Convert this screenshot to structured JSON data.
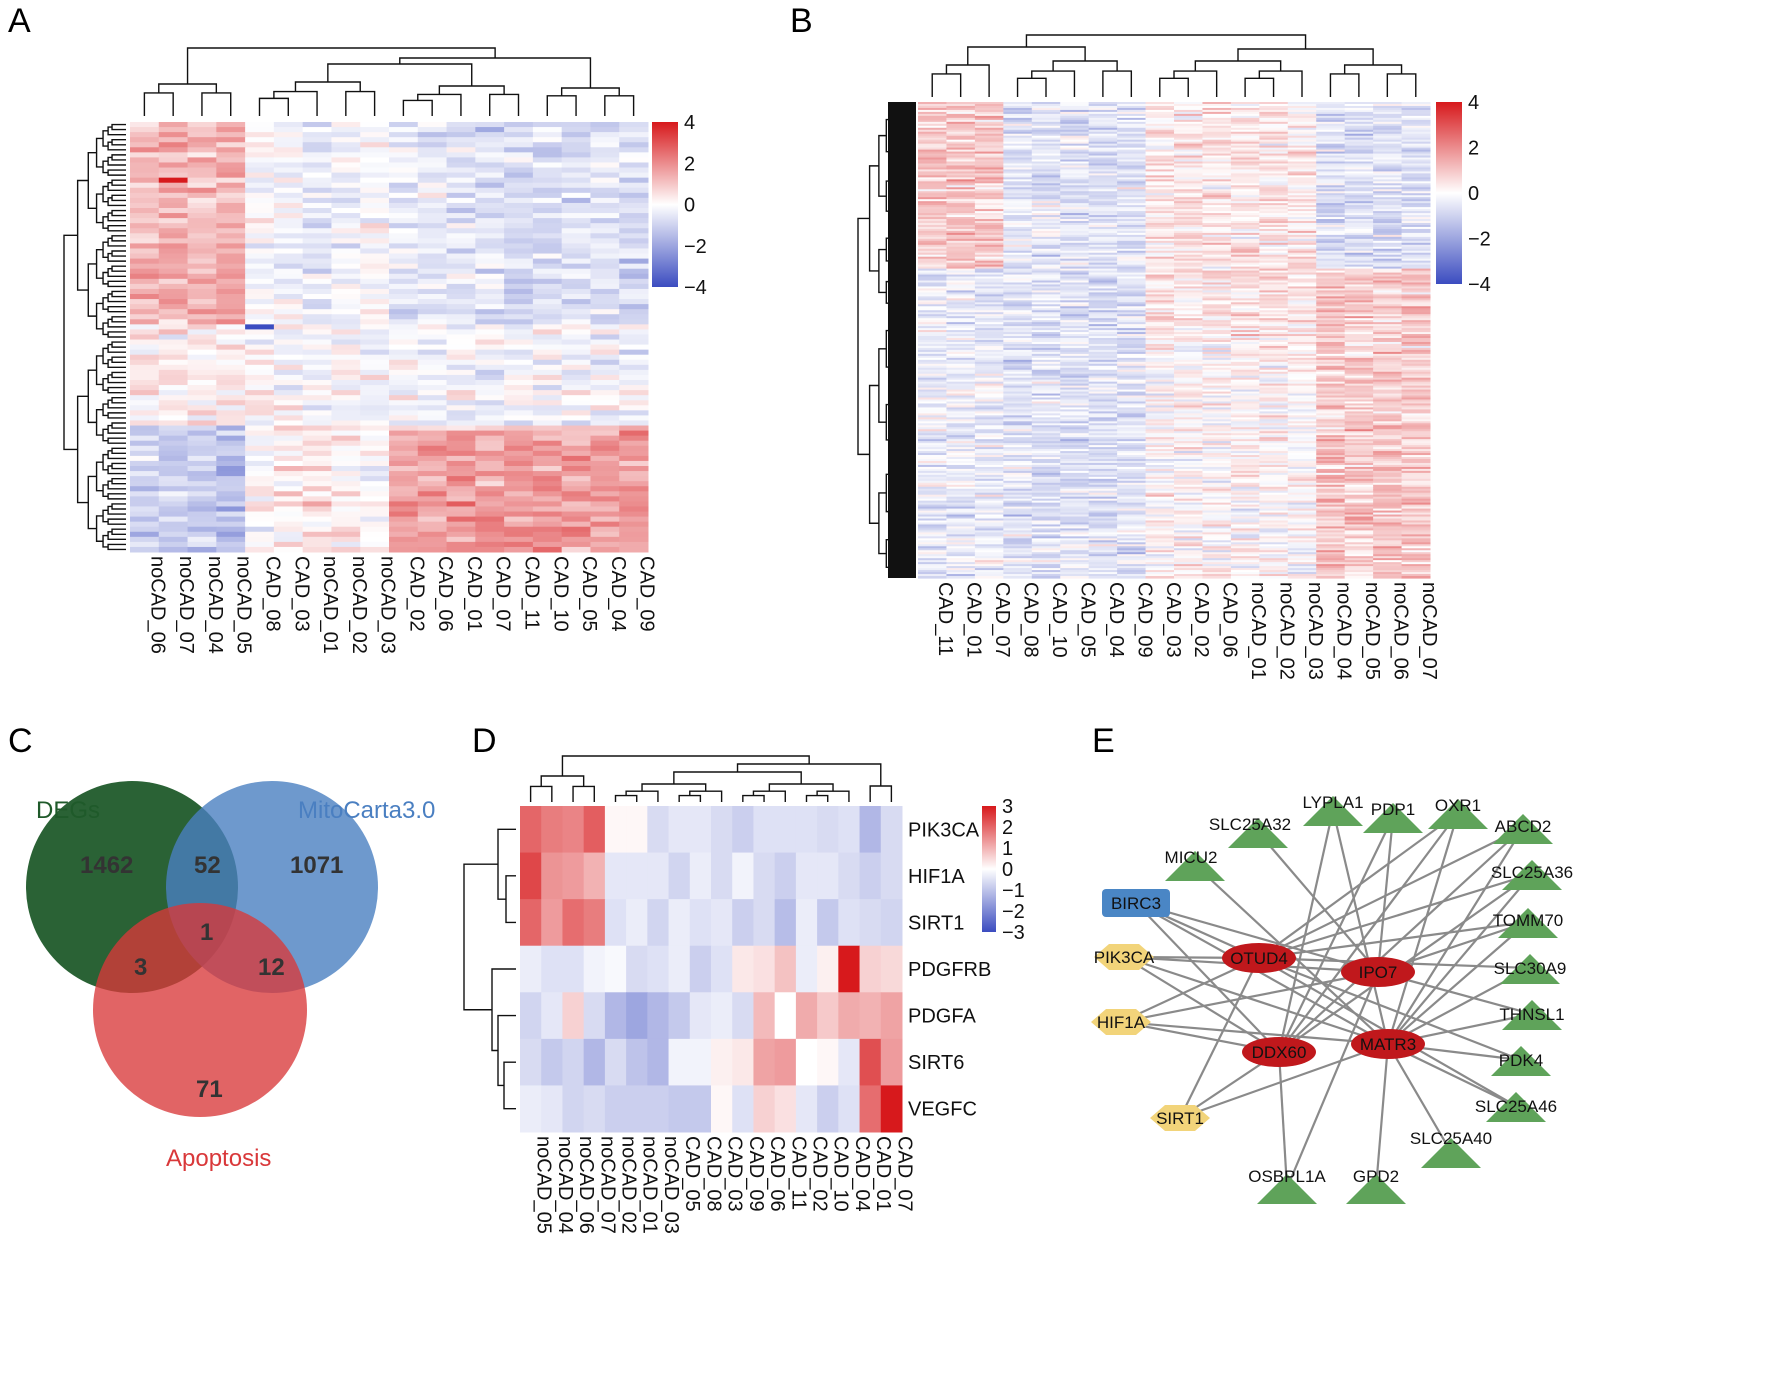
{
  "colors": {
    "high": "#d7191c",
    "mid": "#ffffff",
    "low": "#3b4cc0",
    "venn_degs": "#1f5a2a",
    "venn_mito": "#4a7fc1",
    "venn_apop": "#d9383a",
    "node_hub": "#c0181c",
    "node_apop": "#f2d47a",
    "node_mito": "#5fa35a",
    "node_birc3": "#4a86c5",
    "edge": "#8a8a8a"
  },
  "panels": {
    "A": {
      "letter": "A"
    },
    "B": {
      "letter": "B"
    },
    "C": {
      "letter": "C"
    },
    "D": {
      "letter": "D"
    },
    "E": {
      "letter": "E"
    }
  },
  "chart_data": [
    {
      "panel": "A",
      "type": "heatmap",
      "columns": [
        "noCAD_06",
        "noCAD_07",
        "noCAD_04",
        "noCAD_05",
        "CAD_08",
        "CAD_03",
        "noCAD_01",
        "noCAD_02",
        "noCAD_03",
        "CAD_02",
        "CAD_06",
        "CAD_01",
        "CAD_07",
        "CAD_11",
        "CAD_10",
        "CAD_05",
        "CAD_04",
        "CAD_09"
      ],
      "n_rows": 85,
      "color_scale": {
        "min": -4,
        "max": 4,
        "ticks": [
          "4",
          "2",
          "0",
          "−2",
          "−4"
        ]
      },
      "row_dendrogram": true,
      "col_dendrogram": true
    },
    {
      "panel": "B",
      "type": "heatmap",
      "columns": [
        "CAD_11",
        "CAD_01",
        "CAD_07",
        "CAD_08",
        "CAD_10",
        "CAD_05",
        "CAD_04",
        "CAD_09",
        "CAD_03",
        "CAD_02",
        "CAD_06",
        "noCAD_01",
        "noCAD_02",
        "noCAD_03",
        "noCAD_04",
        "noCAD_05",
        "noCAD_06",
        "noCAD_07"
      ],
      "n_rows": 240,
      "color_scale": {
        "min": -4,
        "max": 4,
        "ticks": [
          "4",
          "2",
          "0",
          "−2",
          "−4"
        ]
      },
      "row_dendrogram": true,
      "col_dendrogram": true
    },
    {
      "panel": "C",
      "type": "venn",
      "sets": [
        "DEGs",
        "MitoCarta3.0",
        "Apoptosis"
      ],
      "regions": {
        "DEGs_only": 1462,
        "Mito_only": 1071,
        "Apoptosis_only": 71,
        "DEGs_Mito": 52,
        "DEGs_Apoptosis": 3,
        "Mito_Apoptosis": 12,
        "all_three": 1
      }
    },
    {
      "panel": "D",
      "type": "heatmap",
      "rows": [
        "PIK3CA",
        "HIF1A",
        "SIRT1",
        "PDGFRB",
        "PDGFA",
        "SIRT6",
        "VEGFC"
      ],
      "columns": [
        "noCAD_05",
        "noCAD_04",
        "noCAD_06",
        "noCAD_07",
        "noCAD_02",
        "noCAD_01",
        "noCAD_03",
        "CAD_05",
        "CAD_08",
        "CAD_03",
        "CAD_09",
        "CAD_06",
        "CAD_11",
        "CAD_02",
        "CAD_10",
        "CAD_04",
        "CAD_01",
        "CAD_07"
      ],
      "values": [
        [
          2.0,
          1.7,
          1.6,
          2.1,
          0.1,
          0.1,
          -0.6,
          -0.4,
          -0.4,
          -0.6,
          -0.8,
          -0.5,
          -0.5,
          -0.5,
          -0.6,
          -0.5,
          -1.2,
          -0.6
        ],
        [
          2.4,
          1.4,
          1.3,
          1.0,
          -0.4,
          -0.4,
          -0.4,
          -0.7,
          -0.3,
          -0.6,
          -0.2,
          -0.6,
          -0.8,
          -0.4,
          -0.4,
          -0.6,
          -0.8,
          -0.6
        ],
        [
          2.0,
          1.3,
          1.9,
          1.7,
          -0.5,
          -0.3,
          -0.7,
          -0.3,
          -0.5,
          -0.4,
          -0.8,
          -0.6,
          -1.1,
          -0.3,
          -0.9,
          -0.5,
          -0.6,
          -0.7
        ],
        [
          -0.3,
          -0.5,
          -0.5,
          -0.2,
          -0.1,
          -0.6,
          -0.5,
          -0.3,
          -0.8,
          -0.5,
          0.3,
          0.4,
          0.8,
          -0.3,
          0.2,
          3.0,
          0.6,
          0.5
        ],
        [
          -0.7,
          -0.4,
          0.6,
          -0.6,
          -1.2,
          -1.5,
          -1.2,
          -0.9,
          -0.4,
          -0.3,
          -0.6,
          0.9,
          0.0,
          1.1,
          0.7,
          1.1,
          1.0,
          1.2
        ],
        [
          -0.6,
          -0.9,
          -0.7,
          -1.2,
          -0.6,
          -1.0,
          -1.2,
          -0.2,
          -0.2,
          0.2,
          0.3,
          1.2,
          1.3,
          0.0,
          0.1,
          -0.4,
          2.3,
          1.3
        ],
        [
          -0.3,
          -0.4,
          -0.7,
          -0.6,
          -0.8,
          -0.8,
          -0.8,
          -0.9,
          -0.9,
          0.1,
          -0.5,
          0.6,
          0.4,
          -0.4,
          -0.8,
          -0.5,
          1.9,
          3.0
        ]
      ],
      "color_scale": {
        "min": -3,
        "max": 3,
        "ticks": [
          "3",
          "2",
          "1",
          "0",
          "−1",
          "−2",
          "−3"
        ]
      }
    },
    {
      "panel": "E",
      "type": "network",
      "nodes": [
        {
          "id": "OTUD4",
          "group": "hub"
        },
        {
          "id": "IPO7",
          "group": "hub"
        },
        {
          "id": "DDX60",
          "group": "hub"
        },
        {
          "id": "MATR3",
          "group": "hub"
        },
        {
          "id": "BIRC3",
          "group": "birc3"
        },
        {
          "id": "PIK3CA",
          "group": "apoptosis"
        },
        {
          "id": "HIF1A",
          "group": "apoptosis"
        },
        {
          "id": "SIRT1",
          "group": "apoptosis"
        },
        {
          "id": "MICU2",
          "group": "mito"
        },
        {
          "id": "SLC25A32",
          "group": "mito"
        },
        {
          "id": "LYPLA1",
          "group": "mito"
        },
        {
          "id": "PDP1",
          "group": "mito"
        },
        {
          "id": "OXR1",
          "group": "mito"
        },
        {
          "id": "ABCD2",
          "group": "mito"
        },
        {
          "id": "SLC25A36",
          "group": "mito"
        },
        {
          "id": "TOMM70",
          "group": "mito"
        },
        {
          "id": "SLC30A9",
          "group": "mito"
        },
        {
          "id": "THNSL1",
          "group": "mito"
        },
        {
          "id": "PDK4",
          "group": "mito"
        },
        {
          "id": "SLC25A46",
          "group": "mito"
        },
        {
          "id": "SLC25A40",
          "group": "mito"
        },
        {
          "id": "GPD2",
          "group": "mito"
        },
        {
          "id": "OSBPL1A",
          "group": "mito"
        }
      ],
      "edges": [
        [
          "BIRC3",
          "OTUD4"
        ],
        [
          "BIRC3",
          "IPO7"
        ],
        [
          "BIRC3",
          "DDX60"
        ],
        [
          "BIRC3",
          "MATR3"
        ],
        [
          "PIK3CA",
          "OTUD4"
        ],
        [
          "PIK3CA",
          "IPO7"
        ],
        [
          "PIK3CA",
          "DDX60"
        ],
        [
          "PIK3CA",
          "MATR3"
        ],
        [
          "HIF1A",
          "OTUD4"
        ],
        [
          "HIF1A",
          "IPO7"
        ],
        [
          "HIF1A",
          "DDX60"
        ],
        [
          "HIF1A",
          "MATR3"
        ],
        [
          "SIRT1",
          "OTUD4"
        ],
        [
          "SIRT1",
          "DDX60"
        ],
        [
          "SIRT1",
          "MATR3"
        ],
        [
          "MICU2",
          "MATR3"
        ],
        [
          "SLC25A32",
          "IPO7"
        ],
        [
          "LYPLA1",
          "DDX60"
        ],
        [
          "LYPLA1",
          "MATR3"
        ],
        [
          "PDP1",
          "DDX60"
        ],
        [
          "PDP1",
          "IPO7"
        ],
        [
          "OXR1",
          "OTUD4"
        ],
        [
          "OXR1",
          "DDX60"
        ],
        [
          "OXR1",
          "MATR3"
        ],
        [
          "ABCD2",
          "OTUD4"
        ],
        [
          "ABCD2",
          "DDX60"
        ],
        [
          "ABCD2",
          "MATR3"
        ],
        [
          "SLC25A36",
          "OTUD4"
        ],
        [
          "SLC25A36",
          "DDX60"
        ],
        [
          "SLC25A36",
          "MATR3"
        ],
        [
          "TOMM70",
          "OTUD4"
        ],
        [
          "TOMM70",
          "IPO7"
        ],
        [
          "TOMM70",
          "MATR3"
        ],
        [
          "SLC30A9",
          "OTUD4"
        ],
        [
          "SLC30A9",
          "MATR3"
        ],
        [
          "THNSL1",
          "IPO7"
        ],
        [
          "THNSL1",
          "MATR3"
        ],
        [
          "PDK4",
          "OTUD4"
        ],
        [
          "PDK4",
          "MATR3"
        ],
        [
          "SLC25A46",
          "OTUD4"
        ],
        [
          "SLC25A46",
          "MATR3"
        ],
        [
          "SLC25A40",
          "MATR3"
        ],
        [
          "GPD2",
          "MATR3"
        ],
        [
          "OSBPL1A",
          "DDX60"
        ],
        [
          "OSBPL1A",
          "IPO7"
        ]
      ]
    }
  ]
}
